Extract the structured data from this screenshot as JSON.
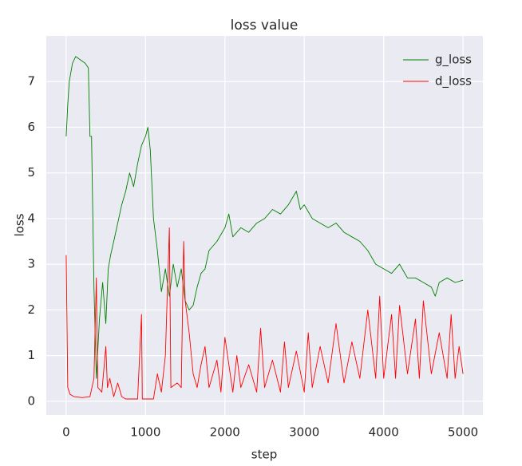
{
  "chart_data": {
    "type": "line",
    "title": "loss value",
    "xlabel": "step",
    "ylabel": "loss",
    "xlim": [
      -250,
      5250
    ],
    "ylim": [
      -0.3,
      8.0
    ],
    "xticks": [
      0,
      1000,
      2000,
      3000,
      4000,
      5000
    ],
    "yticks": [
      0,
      1,
      2,
      3,
      4,
      5,
      6,
      7
    ],
    "grid": true,
    "legend": "upper right",
    "series": [
      {
        "name": "g_loss",
        "color": "#008000",
        "x": [
          0,
          20,
          40,
          80,
          120,
          160,
          200,
          240,
          280,
          300,
          320,
          350,
          380,
          420,
          460,
          500,
          530,
          560,
          600,
          650,
          700,
          750,
          800,
          850,
          900,
          950,
          1000,
          1030,
          1060,
          1100,
          1150,
          1200,
          1250,
          1300,
          1350,
          1400,
          1450,
          1500,
          1550,
          1600,
          1650,
          1700,
          1750,
          1800,
          1900,
          2000,
          2050,
          2100,
          2200,
          2300,
          2400,
          2500,
          2600,
          2700,
          2800,
          2900,
          2950,
          3000,
          3100,
          3200,
          3300,
          3400,
          3500,
          3600,
          3700,
          3800,
          3900,
          4000,
          4100,
          4200,
          4300,
          4400,
          4500,
          4600,
          4650,
          4700,
          4800,
          4900,
          5000
        ],
        "values": [
          5.8,
          6.5,
          7.0,
          7.4,
          7.55,
          7.5,
          7.45,
          7.4,
          7.3,
          5.8,
          5.8,
          2.5,
          0.5,
          1.8,
          2.6,
          1.7,
          2.9,
          3.2,
          3.5,
          3.9,
          4.3,
          4.6,
          5.0,
          4.7,
          5.2,
          5.6,
          5.8,
          6.0,
          5.5,
          4.0,
          3.3,
          2.4,
          2.9,
          2.3,
          3.0,
          2.5,
          2.9,
          2.2,
          2.0,
          2.1,
          2.5,
          2.8,
          2.9,
          3.3,
          3.5,
          3.8,
          4.1,
          3.6,
          3.8,
          3.7,
          3.9,
          4.0,
          4.2,
          4.1,
          4.3,
          4.6,
          4.2,
          4.3,
          4.0,
          3.9,
          3.8,
          3.9,
          3.7,
          3.6,
          3.5,
          3.3,
          3.0,
          2.9,
          2.8,
          3.0,
          2.7,
          2.7,
          2.6,
          2.5,
          2.3,
          2.6,
          2.7,
          2.6,
          2.65
        ]
      },
      {
        "name": "d_loss",
        "color": "#ff0000",
        "x": [
          0,
          20,
          50,
          100,
          200,
          300,
          350,
          380,
          400,
          450,
          500,
          520,
          550,
          600,
          650,
          700,
          750,
          800,
          900,
          950,
          960,
          1000,
          1100,
          1150,
          1200,
          1250,
          1300,
          1320,
          1400,
          1450,
          1480,
          1500,
          1550,
          1600,
          1650,
          1700,
          1750,
          1800,
          1900,
          1950,
          2000,
          2100,
          2150,
          2200,
          2300,
          2400,
          2450,
          2500,
          2600,
          2700,
          2750,
          2800,
          2900,
          3000,
          3050,
          3100,
          3200,
          3300,
          3400,
          3500,
          3600,
          3700,
          3800,
          3900,
          3950,
          4000,
          4100,
          4150,
          4200,
          4300,
          4400,
          4450,
          4500,
          4600,
          4700,
          4800,
          4850,
          4900,
          4950,
          5000
        ],
        "values": [
          3.2,
          0.3,
          0.15,
          0.1,
          0.08,
          0.1,
          0.5,
          2.7,
          0.3,
          0.2,
          1.2,
          0.3,
          0.5,
          0.1,
          0.4,
          0.1,
          0.05,
          0.05,
          0.05,
          1.9,
          0.05,
          0.05,
          0.05,
          0.6,
          0.2,
          1.0,
          3.8,
          0.3,
          0.4,
          0.3,
          3.5,
          2.2,
          1.5,
          0.6,
          0.3,
          0.8,
          1.2,
          0.3,
          0.9,
          0.2,
          1.4,
          0.2,
          1.0,
          0.3,
          0.8,
          0.2,
          1.6,
          0.3,
          0.9,
          0.2,
          1.3,
          0.3,
          1.1,
          0.2,
          1.5,
          0.3,
          1.2,
          0.4,
          1.7,
          0.4,
          1.3,
          0.5,
          2.0,
          0.5,
          2.3,
          0.5,
          1.9,
          0.5,
          2.1,
          0.6,
          1.8,
          0.5,
          2.2,
          0.6,
          1.5,
          0.5,
          1.9,
          0.5,
          1.2,
          0.6
        ]
      }
    ]
  }
}
